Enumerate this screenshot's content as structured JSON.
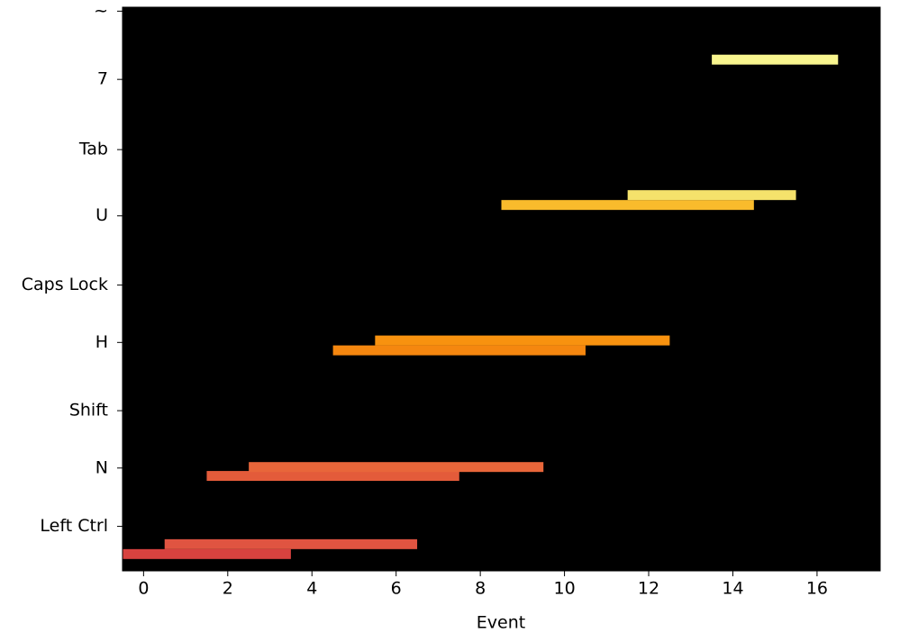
{
  "chart_data": {
    "type": "range_bar",
    "xlabel": "Event",
    "xlim": [
      -0.5,
      17.5
    ],
    "xticks": [
      0,
      2,
      4,
      6,
      8,
      10,
      12,
      14,
      16
    ],
    "ylim": [
      57,
      0
    ],
    "yticks": [
      {
        "value": 52.5,
        "label": "Left Ctrl"
      },
      {
        "value": 46.6,
        "label": "N"
      },
      {
        "value": 40.8,
        "label": "Shift"
      },
      {
        "value": 33.9,
        "label": "H"
      },
      {
        "value": 28.1,
        "label": "Caps Lock"
      },
      {
        "value": 21.1,
        "label": "U"
      },
      {
        "value": 14.4,
        "label": "Tab"
      },
      {
        "value": 7.3,
        "label": "7"
      },
      {
        "value": 0.4,
        "label": "~"
      }
    ],
    "background": "#000000",
    "bars": [
      {
        "y": 55.3,
        "start": -0.5,
        "end": 3.5,
        "color": "#d8423f"
      },
      {
        "y": 54.3,
        "start": 0.5,
        "end": 6.5,
        "color": "#e05441"
      },
      {
        "y": 47.4,
        "start": 1.5,
        "end": 7.5,
        "color": "#e35b3a"
      },
      {
        "y": 46.5,
        "start": 2.5,
        "end": 9.5,
        "color": "#e8663a"
      },
      {
        "y": 34.7,
        "start": 4.5,
        "end": 10.5,
        "color": "#f5870f"
      },
      {
        "y": 33.7,
        "start": 5.5,
        "end": 12.5,
        "color": "#f8920f"
      },
      {
        "y": 20.0,
        "start": 8.5,
        "end": 14.5,
        "color": "#f9bb2c"
      },
      {
        "y": 19.0,
        "start": 11.5,
        "end": 15.5,
        "color": "#f5e26b"
      },
      {
        "y": 5.3,
        "start": 13.5,
        "end": 16.5,
        "color": "#f8f58e"
      }
    ]
  }
}
